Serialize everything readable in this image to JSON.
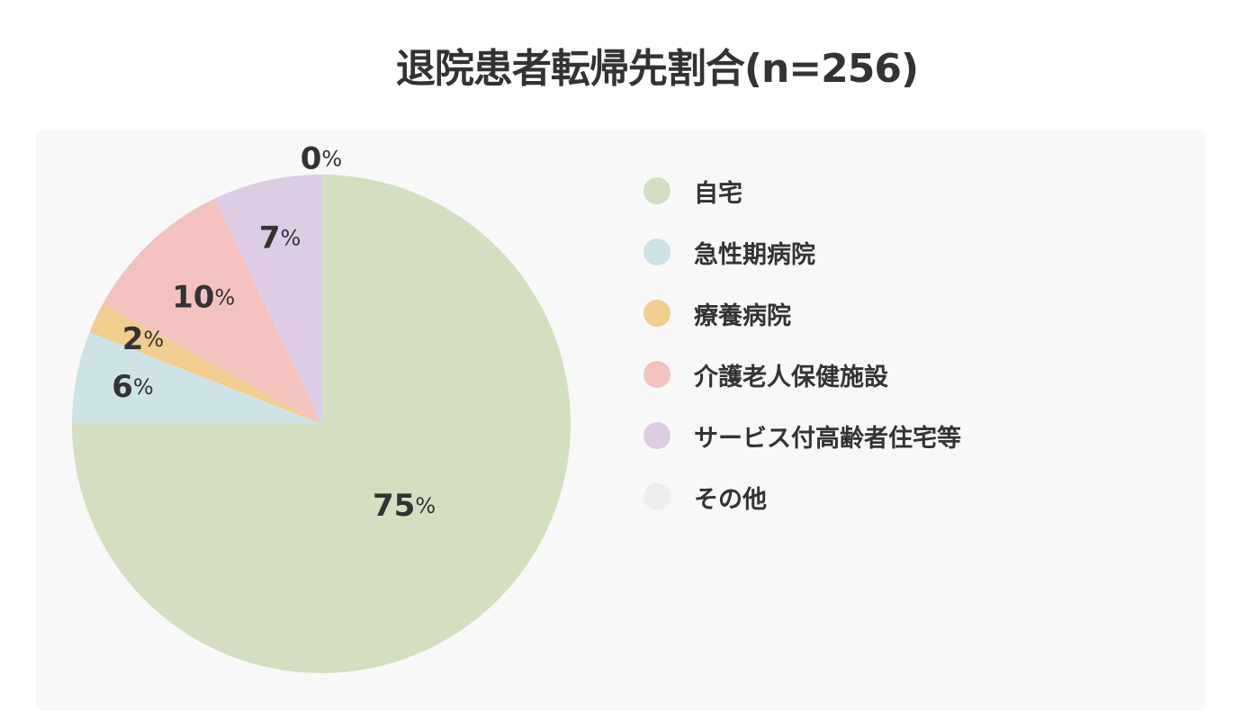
{
  "chart_data": {
    "type": "pie",
    "title": "退院患者転帰先割合(n=256)",
    "percent_sign": "%",
    "legend_position": "right",
    "slices": [
      {
        "name": "自宅",
        "value": 75,
        "color": "#d3dfc0"
      },
      {
        "name": "急性期病院",
        "value": 6,
        "color": "#cde3e6"
      },
      {
        "name": "療養病院",
        "value": 2,
        "color": "#f1cd8f"
      },
      {
        "name": "介護老人保健施設",
        "value": 10,
        "color": "#f3c2bf"
      },
      {
        "name": "サービス付高齢者住宅等",
        "value": 7,
        "color": "#dccde5"
      },
      {
        "name": "その他",
        "value": 0,
        "color": "#eeeeee"
      }
    ]
  }
}
